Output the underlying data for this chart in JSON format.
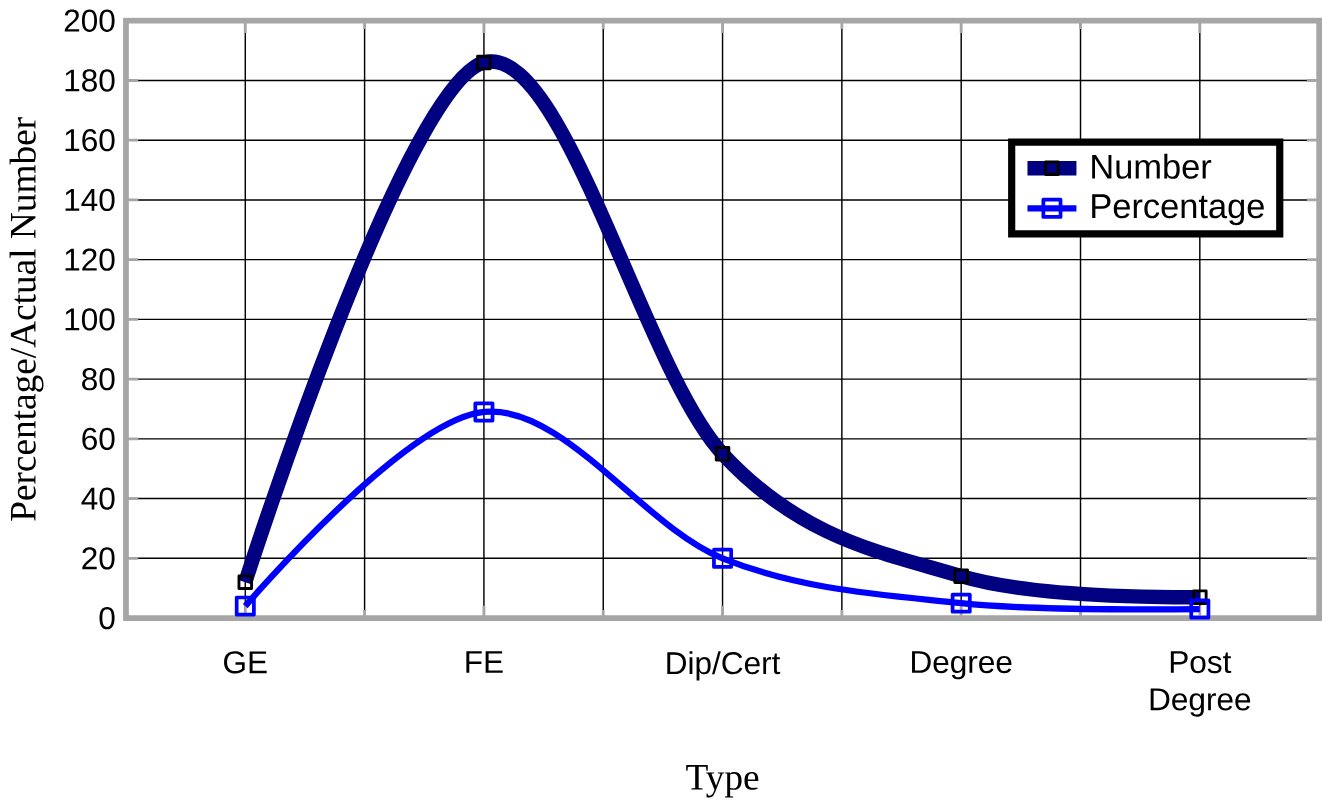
{
  "chart_data": {
    "type": "line",
    "xlabel": "Type",
    "ylabel": "Percentage/Actual Number",
    "categories": [
      "GE",
      "FE",
      "Dip/Cert",
      "Degree",
      "Post Degree"
    ],
    "series": [
      {
        "name": "Number",
        "color": "#000080",
        "values": [
          12,
          186,
          55,
          14,
          7
        ]
      },
      {
        "name": "Percentage",
        "color": "#0000ff",
        "values": [
          4,
          69,
          20,
          5,
          3
        ]
      }
    ],
    "ylim": [
      0,
      200
    ],
    "yticks": [
      0,
      20,
      40,
      60,
      80,
      100,
      120,
      140,
      160,
      180,
      200
    ],
    "grid": true,
    "legend": "right",
    "marker": "square"
  }
}
